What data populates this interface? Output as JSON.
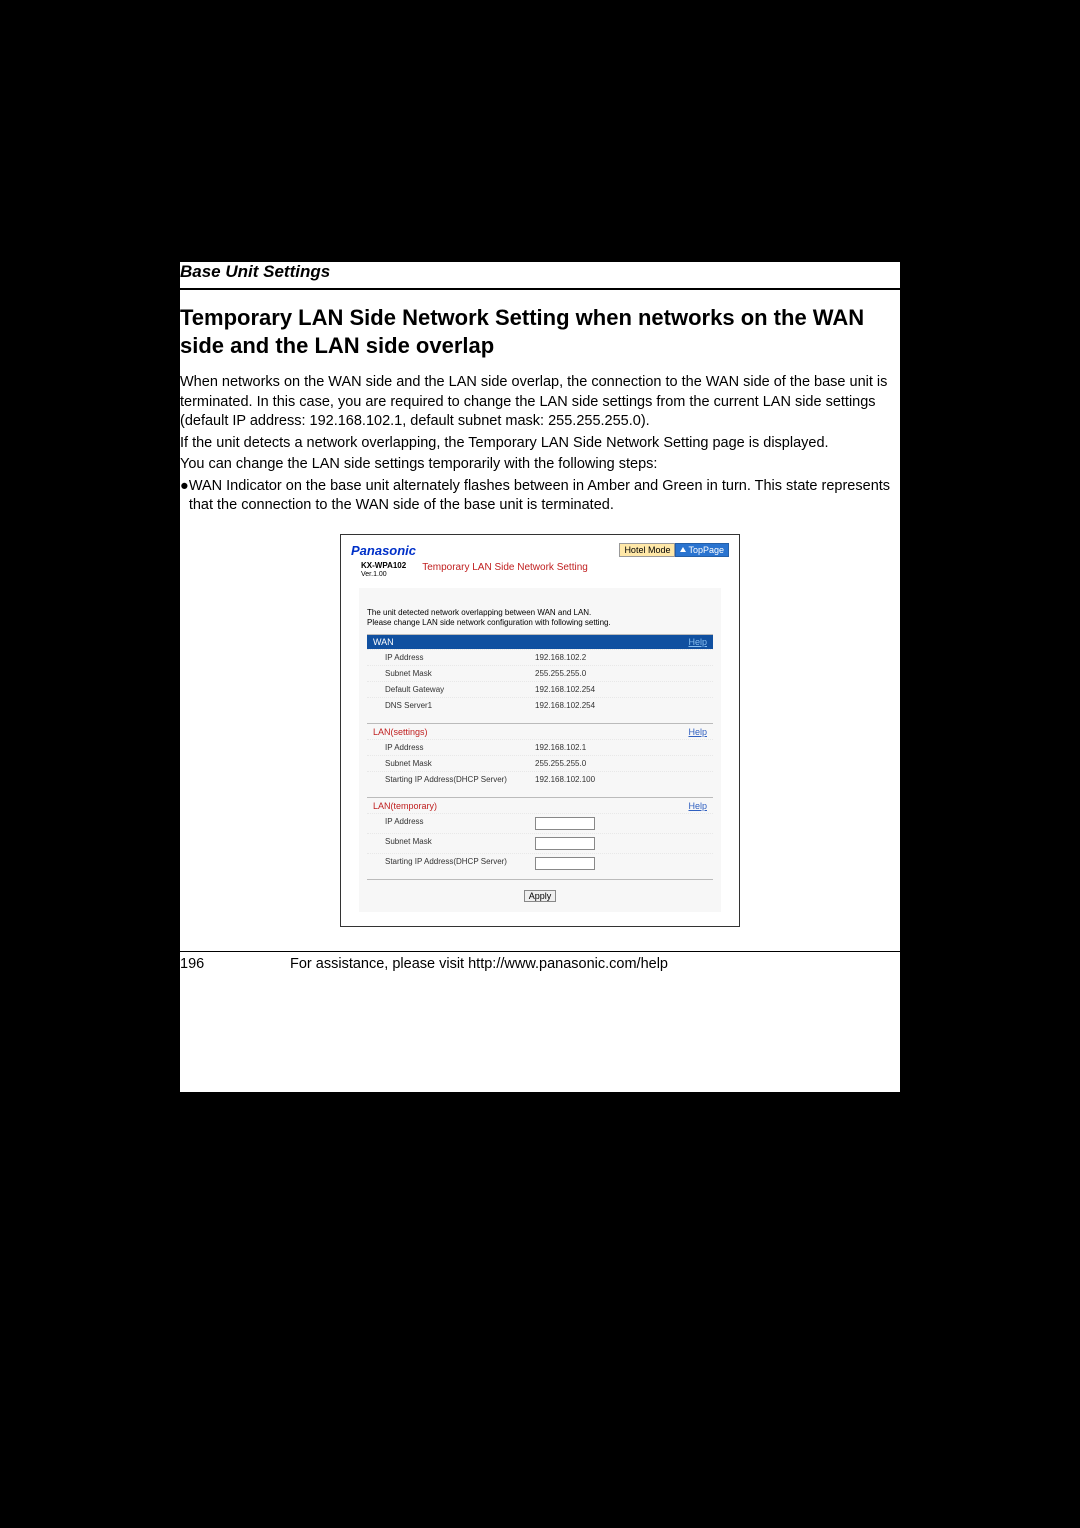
{
  "doc": {
    "section_label": "Base Unit Settings",
    "heading": "Temporary LAN Side Network Setting when networks on the WAN side and the LAN side overlap",
    "p1": "When networks on the WAN side and the LAN side overlap, the connection to the WAN side of the base unit is terminated. In this case, you are required to change the LAN side settings from the current LAN side settings (default IP address: 192.168.102.1, default subnet mask: 255.255.255.0).",
    "p2": "If the unit detects a network overlapping, the Temporary LAN Side Network Setting page is displayed.",
    "p3": "You can change the LAN side settings temporarily with the following steps:",
    "bullet": "WAN Indicator on the base unit alternately flashes between in Amber and Green in turn. This state represents that the connection to the WAN side of the base unit is terminated.",
    "page_number": "196",
    "footer_text": "For assistance, please visit http://www.panasonic.com/help"
  },
  "ss": {
    "logo": "Panasonic",
    "hotel_mode": "Hotel Mode",
    "top_page": "TopPage",
    "model": "KX-WPA102",
    "version": "Ver.1.00",
    "title": "Temporary LAN Side Network Setting",
    "note1": "The unit detected network overlapping between WAN and LAN.",
    "note2": "Please change LAN side network configuration with following setting.",
    "help": "Help",
    "apply": "Apply",
    "sections": {
      "wan": {
        "label": "WAN",
        "rows": [
          {
            "k": "IP Address",
            "v": "192.168.102.2"
          },
          {
            "k": "Subnet Mask",
            "v": "255.255.255.0"
          },
          {
            "k": "Default Gateway",
            "v": "192.168.102.254"
          },
          {
            "k": "DNS Server1",
            "v": "192.168.102.254"
          }
        ]
      },
      "lan_settings": {
        "label": "LAN(settings)",
        "rows": [
          {
            "k": "IP Address",
            "v": "192.168.102.1"
          },
          {
            "k": "Subnet Mask",
            "v": "255.255.255.0"
          },
          {
            "k": "Starting IP Address(DHCP Server)",
            "v": "192.168.102.100"
          }
        ]
      },
      "lan_temp": {
        "label": "LAN(temporary)",
        "rows": [
          {
            "k": "IP Address"
          },
          {
            "k": "Subnet Mask"
          },
          {
            "k": "Starting IP Address(DHCP Server)"
          }
        ]
      }
    }
  }
}
